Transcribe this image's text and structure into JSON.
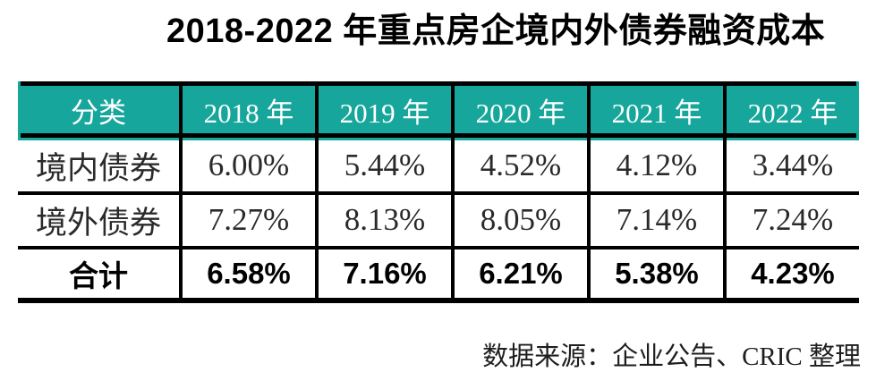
{
  "title": "2018-2022 年重点房企境内外债券融资成本",
  "source_note": "数据来源：企业公告、CRIC 整理",
  "colors": {
    "header_bg": "#17a69b",
    "header_text": "#ffffff",
    "border": "#000000"
  },
  "table": {
    "columns": [
      "分类",
      "2018 年",
      "2019 年",
      "2020 年",
      "2021 年",
      "2022 年"
    ],
    "rows": [
      {
        "label": "境内债券",
        "values": [
          "6.00%",
          "5.44%",
          "4.52%",
          "4.12%",
          "3.44%"
        ]
      },
      {
        "label": "境外债券",
        "values": [
          "7.27%",
          "8.13%",
          "8.05%",
          "7.14%",
          "7.24%"
        ]
      },
      {
        "label": "合计",
        "values": [
          "6.58%",
          "7.16%",
          "6.21%",
          "5.38%",
          "4.23%"
        ]
      }
    ]
  },
  "chart_data": {
    "type": "table",
    "title": "2018-2022 年重点房企境内外债券融资成本",
    "categories": [
      "2018 年",
      "2019 年",
      "2020 年",
      "2021 年",
      "2022 年"
    ],
    "series": [
      {
        "name": "境内债券",
        "values": [
          6.0,
          5.44,
          4.52,
          4.12,
          3.44
        ]
      },
      {
        "name": "境外债券",
        "values": [
          7.27,
          8.13,
          8.05,
          7.14,
          7.24
        ]
      },
      {
        "name": "合计",
        "values": [
          6.58,
          7.16,
          6.21,
          5.38,
          4.23
        ]
      }
    ],
    "unit": "%",
    "source": "数据来源：企业公告、CRIC 整理"
  }
}
